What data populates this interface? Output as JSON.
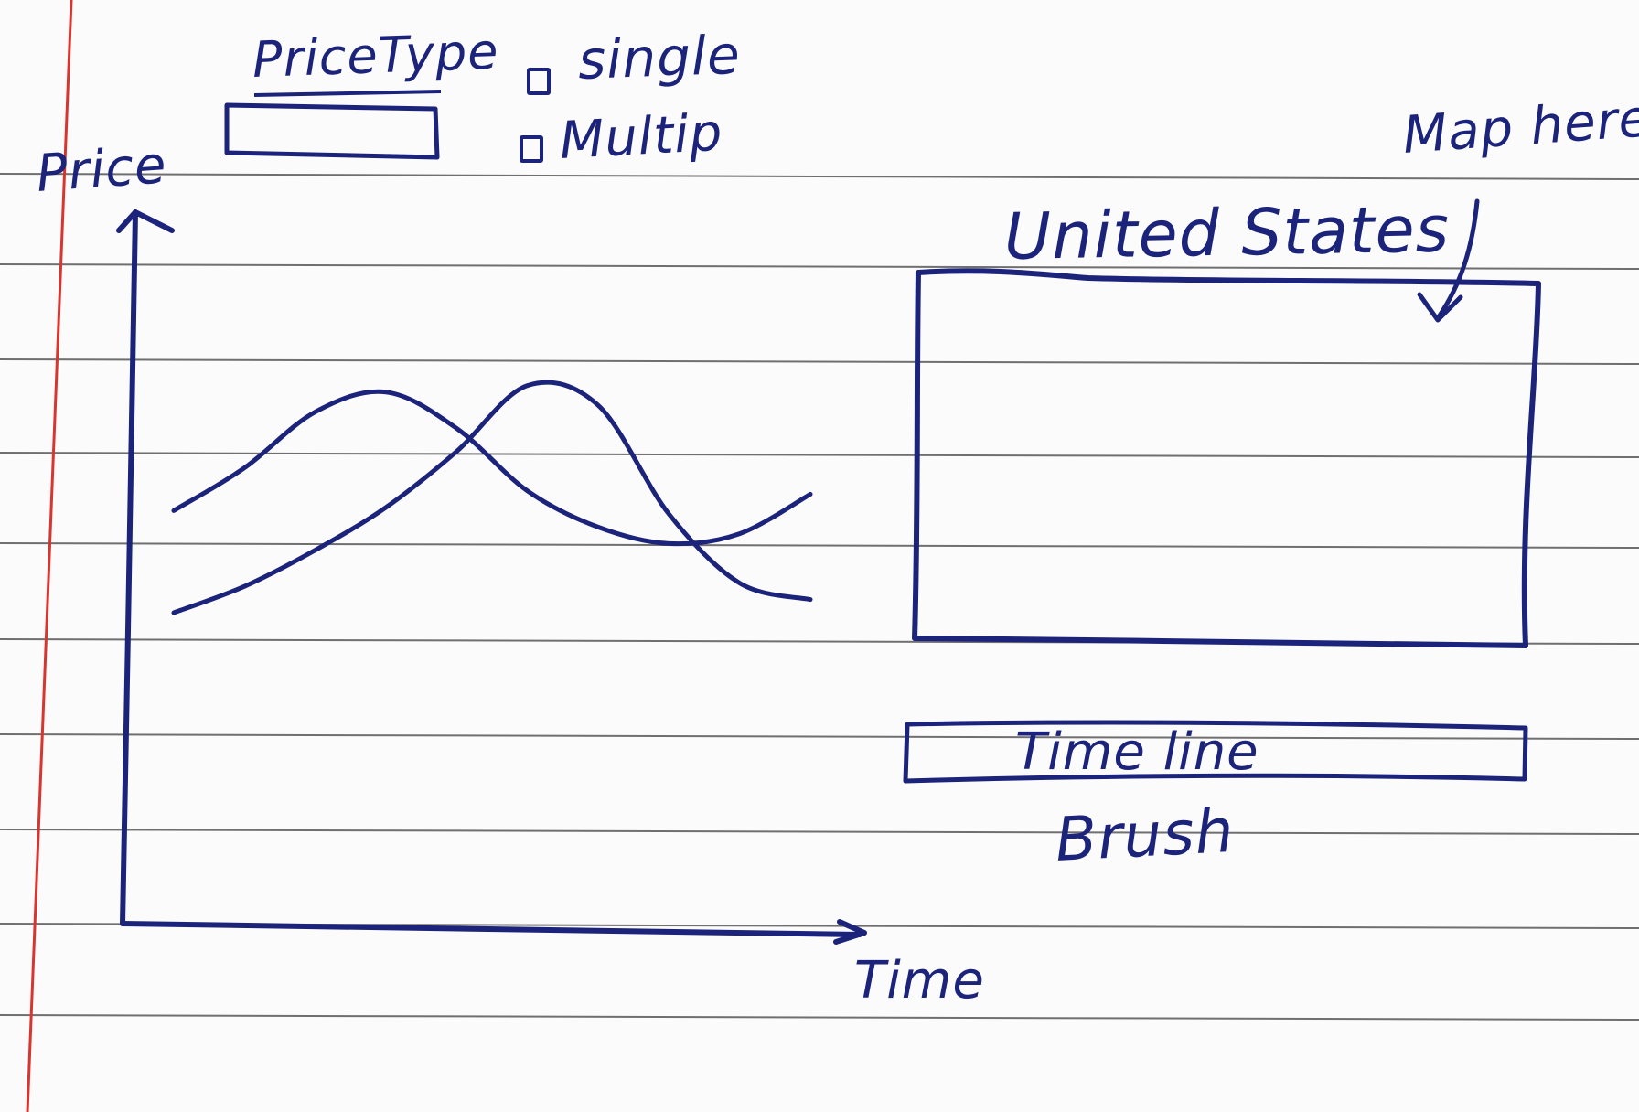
{
  "controls": {
    "price_type_label": "PriceType",
    "options": [
      "single",
      "Multip"
    ]
  },
  "chart_data": {
    "type": "line",
    "ylabel": "Price",
    "xlabel": "Time",
    "series": [
      {
        "values": [
          0.56,
          0.69,
          0.86,
          0.92,
          0.81,
          0.62,
          0.51,
          0.46,
          0.49,
          0.61
        ]
      },
      {
        "values": [
          0.25,
          0.33,
          0.44,
          0.57,
          0.74,
          0.94,
          0.88,
          0.55,
          0.34,
          0.29
        ]
      }
    ]
  },
  "map": {
    "title": "United States",
    "annotation": "Map here"
  },
  "timeline": {
    "label": "Time line",
    "brush_label": "Brush"
  },
  "colors": {
    "ink": "#1c237a",
    "paper": "#fbfbfb",
    "rule": "#6f6f70",
    "margin": "#d8352f"
  }
}
